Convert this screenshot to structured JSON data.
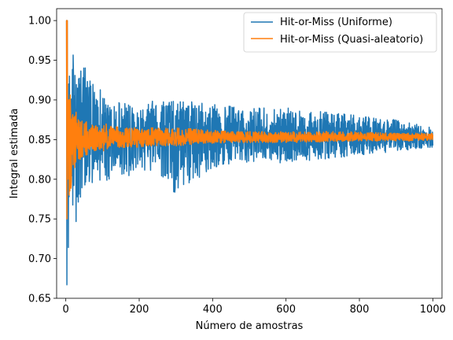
{
  "chart_data": {
    "type": "line",
    "xlabel": "Número de amostras",
    "ylabel": "Integral estimada",
    "xlim": [
      -25,
      1025
    ],
    "ylim": [
      0.65,
      1.015
    ],
    "xticks": [
      0,
      200,
      400,
      600,
      800,
      1000
    ],
    "xtick_labels": [
      "0",
      "200",
      "400",
      "600",
      "800",
      "1000"
    ],
    "yticks": [
      0.65,
      0.7,
      0.75,
      0.8,
      0.85,
      0.9,
      0.95,
      1.0
    ],
    "ytick_labels": [
      "0.65",
      "0.70",
      "0.75",
      "0.80",
      "0.85",
      "0.90",
      "0.95",
      "1.00"
    ],
    "grid": false,
    "legend_position": "top-right",
    "true_value": 0.853,
    "series": [
      {
        "name": "Hit-or-Miss (Uniforme)",
        "color": "#1f77b4",
        "x": [
          1,
          2,
          3,
          4,
          5,
          6,
          7,
          8,
          9,
          10,
          12,
          15,
          18,
          20,
          25,
          30,
          35,
          40,
          50,
          60,
          70,
          80,
          100,
          120,
          150,
          200,
          250,
          300,
          400,
          500,
          600,
          700,
          800,
          900,
          1000
        ],
        "max_envelope": [
          1.0,
          1.0,
          0.667,
          1.0,
          1.0,
          0.9,
          0.88,
          0.92,
          1.0,
          0.93,
          0.92,
          0.91,
          1.0,
          0.96,
          0.94,
          0.93,
          0.945,
          0.94,
          0.95,
          0.935,
          0.925,
          0.92,
          0.915,
          0.9,
          0.9,
          0.895,
          0.9,
          0.9,
          0.895,
          0.89,
          0.89,
          0.885,
          0.88,
          0.875,
          0.865
        ],
        "min_envelope": [
          1.0,
          0.5,
          0.667,
          0.75,
          0.8,
          0.667,
          0.714,
          0.75,
          0.778,
          0.8,
          0.75,
          0.8,
          0.78,
          0.75,
          0.76,
          0.733,
          0.76,
          0.77,
          0.79,
          0.78,
          0.79,
          0.8,
          0.79,
          0.8,
          0.8,
          0.81,
          0.81,
          0.78,
          0.815,
          0.82,
          0.82,
          0.825,
          0.83,
          0.835,
          0.84
        ]
      },
      {
        "name": "Hit-or-Miss (Quasi-aleatorio)",
        "color": "#ff7f0e",
        "x": [
          1,
          2,
          3,
          4,
          5,
          6,
          7,
          8,
          9,
          10,
          12,
          15,
          18,
          20,
          25,
          30,
          35,
          40,
          50,
          60,
          70,
          80,
          100,
          120,
          150,
          200,
          250,
          300,
          400,
          500,
          600,
          700,
          800,
          900,
          1000
        ],
        "max_envelope": [
          1.0,
          1.0,
          1.0,
          1.0,
          0.92,
          0.9,
          0.88,
          0.9,
          0.935,
          0.9,
          0.93,
          0.93,
          0.9,
          0.89,
          0.88,
          0.89,
          0.875,
          0.875,
          0.875,
          0.875,
          0.87,
          0.87,
          0.87,
          0.87,
          0.865,
          0.865,
          0.865,
          0.865,
          0.862,
          0.86,
          0.86,
          0.86,
          0.86,
          0.858,
          0.858
        ],
        "min_envelope": [
          1.0,
          1.0,
          0.75,
          0.714,
          0.8,
          0.78,
          0.83,
          0.75,
          0.78,
          0.8,
          0.72,
          0.76,
          0.78,
          0.8,
          0.81,
          0.82,
          0.825,
          0.82,
          0.83,
          0.83,
          0.835,
          0.835,
          0.835,
          0.84,
          0.84,
          0.84,
          0.842,
          0.842,
          0.845,
          0.846,
          0.846,
          0.847,
          0.848,
          0.848,
          0.849
        ]
      }
    ]
  }
}
